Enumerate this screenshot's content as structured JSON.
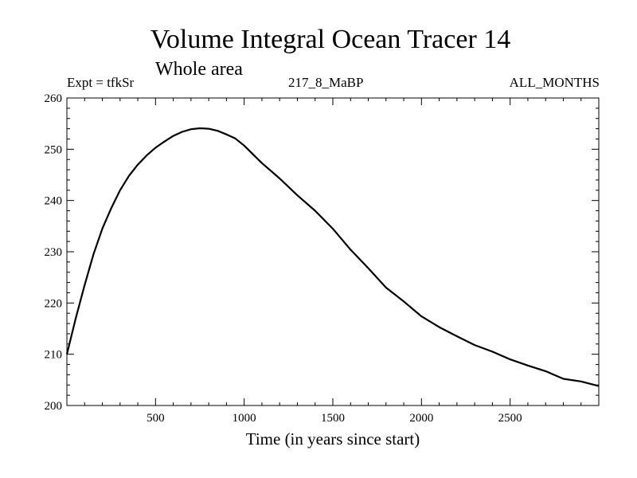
{
  "chart_data": {
    "type": "line",
    "title": "Volume Integral Ocean Tracer 14",
    "subtitle": "Whole area",
    "experiment": "Expt = tfkSr",
    "run_label": "217_8_MaBP",
    "months_label": "ALL_MONTHS",
    "xlabel": "Time (in years since start)",
    "ylabel": "",
    "xlim": [
      0,
      3000
    ],
    "ylim": [
      200,
      260
    ],
    "x_ticks": [
      500,
      1000,
      1500,
      2000,
      2500
    ],
    "y_ticks": [
      200,
      210,
      220,
      230,
      240,
      250,
      260
    ],
    "grid": false,
    "series": [
      {
        "color": "#000000",
        "x": [
          0,
          50,
          100,
          150,
          200,
          250,
          300,
          350,
          400,
          450,
          500,
          550,
          600,
          650,
          700,
          750,
          800,
          850,
          900,
          950,
          1000,
          1100,
          1200,
          1300,
          1400,
          1500,
          1600,
          1700,
          1800,
          1900,
          2000,
          2100,
          2200,
          2300,
          2400,
          2500,
          2600,
          2700,
          2800,
          2900,
          3000
        ],
        "values": [
          210.0,
          217.0,
          223.5,
          229.5,
          234.5,
          238.5,
          242.0,
          244.8,
          247.0,
          248.8,
          250.3,
          251.5,
          252.6,
          253.4,
          253.9,
          254.1,
          254.0,
          253.6,
          252.9,
          252.1,
          250.7,
          247.3,
          244.3,
          241.0,
          238.0,
          234.5,
          230.4,
          226.8,
          223.0,
          220.3,
          217.4,
          215.3,
          213.5,
          211.8,
          210.5,
          209.0,
          207.8,
          206.7,
          205.2,
          204.7,
          203.8
        ]
      }
    ]
  }
}
